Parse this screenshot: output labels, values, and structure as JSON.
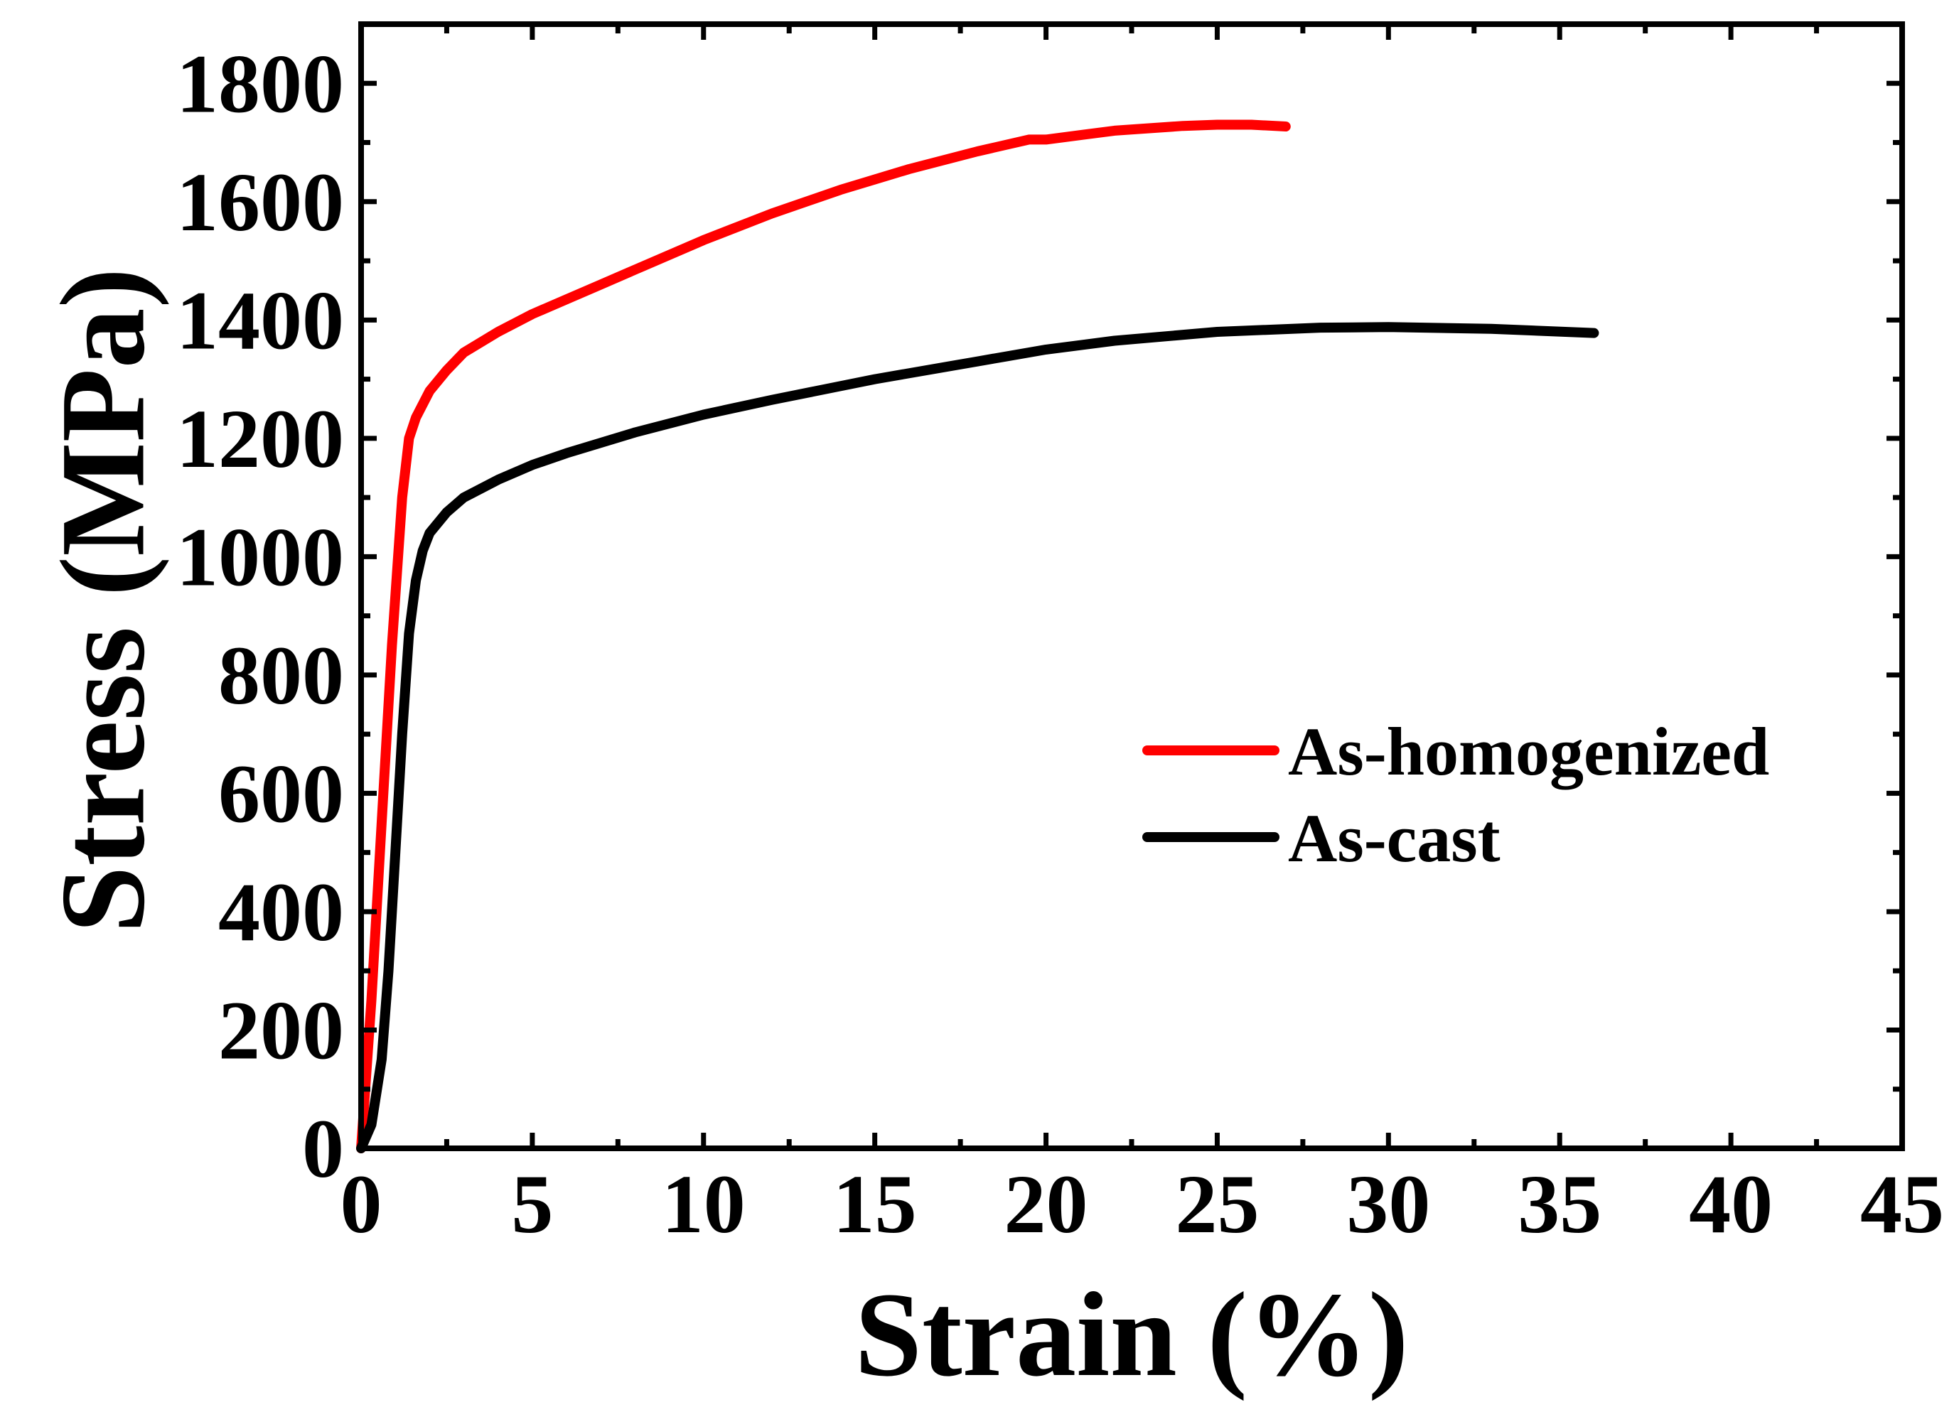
{
  "chart_data": {
    "type": "line",
    "title": "",
    "xlabel": "Strain (%)",
    "ylabel": "Stress (MPa)",
    "xlim": [
      0,
      45
    ],
    "ylim": [
      0,
      1900
    ],
    "xticks": [
      0,
      5,
      10,
      15,
      20,
      25,
      30,
      35,
      40,
      45
    ],
    "xtick_labels": [
      "0",
      "5",
      "10",
      "15",
      "20",
      "25",
      "30",
      "35",
      "40",
      "45"
    ],
    "yticks": [
      0,
      200,
      400,
      600,
      800,
      1000,
      1200,
      1400,
      1600,
      1800
    ],
    "ytick_labels": [
      "0",
      "200",
      "400",
      "600",
      "800",
      "1000",
      "1200",
      "1400",
      "1600",
      "1800"
    ],
    "grid": false,
    "legend_position": "center-right",
    "series": [
      {
        "name": "As-homogenized",
        "color": "#ff0000",
        "x": [
          0,
          0.3,
          0.6,
          0.9,
          1.2,
          1.4,
          1.6,
          2.0,
          2.5,
          3.0,
          4.0,
          5.0,
          6.0,
          7.0,
          8.0,
          10.0,
          12.0,
          14.0,
          16.0,
          18.0,
          19.5,
          20.0,
          22.0,
          24.0,
          25.0,
          26.0,
          27.0
        ],
        "y": [
          0,
          250,
          550,
          850,
          1100,
          1200,
          1235,
          1280,
          1315,
          1345,
          1380,
          1410,
          1435,
          1460,
          1485,
          1535,
          1580,
          1620,
          1655,
          1685,
          1705,
          1705,
          1720,
          1728,
          1730,
          1730,
          1727
        ]
      },
      {
        "name": "As-cast",
        "color": "#000000",
        "x": [
          0,
          0.3,
          0.6,
          0.8,
          1.0,
          1.2,
          1.4,
          1.6,
          1.8,
          2.0,
          2.5,
          3.0,
          4.0,
          5.0,
          6.0,
          8.0,
          10.0,
          12.0,
          15.0,
          18.0,
          20.0,
          22.0,
          25.0,
          28.0,
          30.0,
          33.0,
          36.0
        ],
        "y": [
          0,
          40,
          150,
          300,
          500,
          700,
          870,
          960,
          1010,
          1040,
          1075,
          1100,
          1130,
          1155,
          1175,
          1210,
          1240,
          1265,
          1300,
          1330,
          1350,
          1365,
          1380,
          1387,
          1388,
          1385,
          1378
        ]
      }
    ]
  }
}
